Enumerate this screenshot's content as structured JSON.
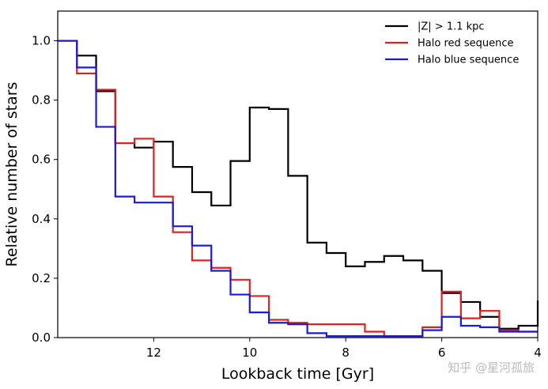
{
  "chart_data": {
    "type": "line",
    "drawstyle": "steps",
    "xlabel": "Lookback time [Gyr]",
    "ylabel": "Relative number of stars",
    "xlim": [
      14,
      4
    ],
    "ylim": [
      0,
      1.1
    ],
    "x_reversed": true,
    "xticks": [
      12,
      10,
      8,
      6,
      4
    ],
    "yticks": [
      0.0,
      0.2,
      0.4,
      0.6,
      0.8,
      1.0
    ],
    "grid": false,
    "legend_position": "top-right",
    "bin_edges": [
      14.0,
      13.6,
      13.2,
      12.8,
      12.4,
      12.0,
      11.6,
      11.2,
      10.8,
      10.4,
      10.0,
      9.6,
      9.2,
      8.8,
      8.4,
      8.0,
      7.6,
      7.2,
      6.8,
      6.4,
      6.0,
      5.6,
      5.2,
      4.8,
      4.4,
      4.0
    ],
    "series": [
      {
        "name": "|Z| > 1.1 kpc",
        "color": "#000000",
        "values": [
          1.0,
          0.95,
          0.83,
          0.655,
          0.64,
          0.66,
          0.575,
          0.49,
          0.445,
          0.595,
          0.775,
          0.77,
          0.545,
          0.32,
          0.285,
          0.24,
          0.255,
          0.275,
          0.26,
          0.225,
          0.15,
          0.12,
          0.07,
          0.03,
          0.04
        ]
      },
      {
        "name": "Halo red sequence",
        "color": "#dd2222",
        "values": [
          1.0,
          0.89,
          0.835,
          0.655,
          0.67,
          0.475,
          0.355,
          0.26,
          0.235,
          0.195,
          0.14,
          0.06,
          0.05,
          0.045,
          0.045,
          0.045,
          0.02,
          0.005,
          0.005,
          0.035,
          0.155,
          0.065,
          0.09,
          0.025,
          0.02
        ]
      },
      {
        "name": "Halo blue sequence",
        "color": "#1a1adc",
        "values": [
          1.0,
          0.91,
          0.71,
          0.475,
          0.455,
          0.455,
          0.375,
          0.31,
          0.225,
          0.145,
          0.085,
          0.05,
          0.045,
          0.015,
          0.005,
          0.005,
          0.005,
          0.005,
          0.005,
          0.025,
          0.07,
          0.04,
          0.035,
          0.02,
          0.02
        ]
      }
    ]
  },
  "watermark": "知乎 @星河孤旅"
}
